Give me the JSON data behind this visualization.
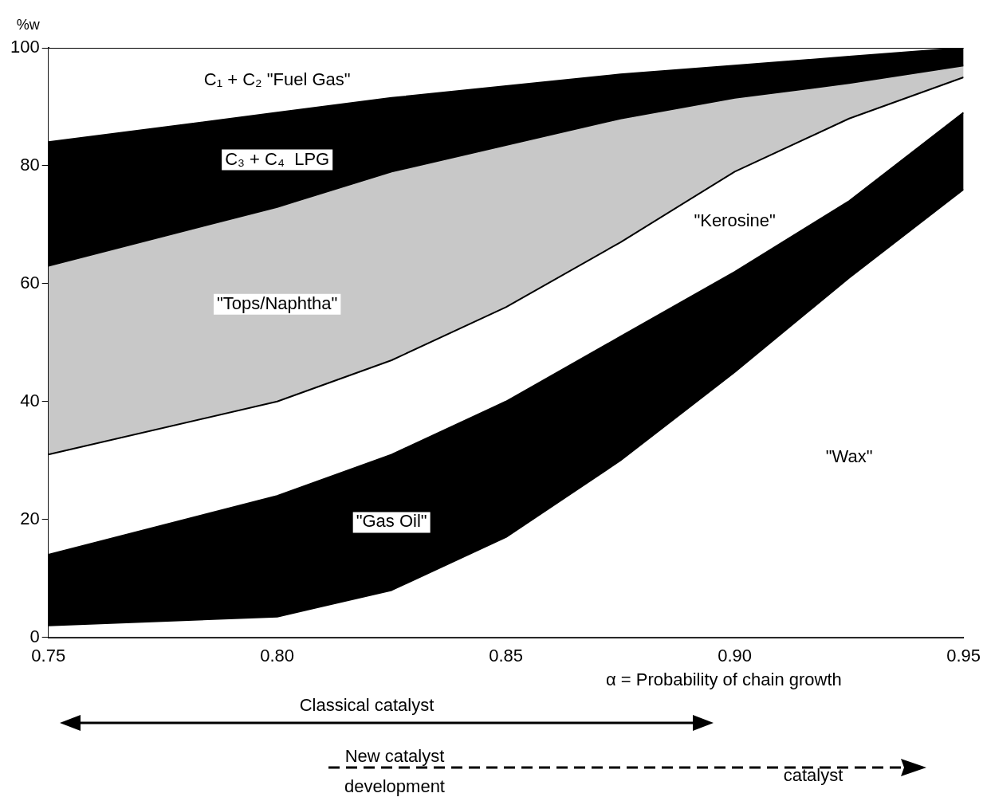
{
  "chart_data": {
    "type": "area",
    "stacked": true,
    "ylabel": "%w",
    "xlabel": "α = Probability of chain growth",
    "x": [
      0.75,
      0.8,
      0.825,
      0.85,
      0.875,
      0.9,
      0.925,
      0.95
    ],
    "series": [
      {
        "name": "\"Wax\"",
        "color": "#ffffff",
        "values": [
          2,
          3.5,
          8,
          17,
          30,
          45,
          61,
          76
        ]
      },
      {
        "name": "\"Gas Oil\"",
        "color": "#000000",
        "values": [
          12,
          20.5,
          23,
          23,
          21,
          17,
          13,
          13
        ]
      },
      {
        "name": "\"Kerosine\"",
        "color": "#ffffff",
        "values": [
          17,
          16,
          16,
          16,
          16,
          17,
          14,
          6
        ]
      },
      {
        "name": "\"Tops/Naphtha\"",
        "color": "#c8c8c8",
        "values": [
          32,
          33,
          32,
          27.5,
          21,
          12.5,
          6,
          2
        ]
      },
      {
        "name": "C₃ + C₄  LPG",
        "color": "#000000",
        "values": [
          21,
          16,
          12.5,
          10,
          7.5,
          5.5,
          4.5,
          3
        ]
      },
      {
        "name": "C₁ + C₂ \"Fuel Gas\"",
        "color": "#ffffff",
        "values": [
          16,
          11,
          8.5,
          6.5,
          4.5,
          3,
          1.5,
          0
        ]
      }
    ],
    "xlim": [
      0.75,
      0.95
    ],
    "xticks": [
      0.75,
      {
        "value": 0.8,
        "label": "0.80"
      },
      0.85,
      {
        "value": 0.9,
        "label": "0.90"
      },
      0.95
    ],
    "ylim": [
      0,
      100
    ],
    "yticks": [
      0,
      20,
      40,
      60,
      80,
      100
    ],
    "grid": false,
    "legend": false,
    "annotations": [
      "Classical catalyst",
      "New catalyst development",
      "catalyst"
    ]
  }
}
